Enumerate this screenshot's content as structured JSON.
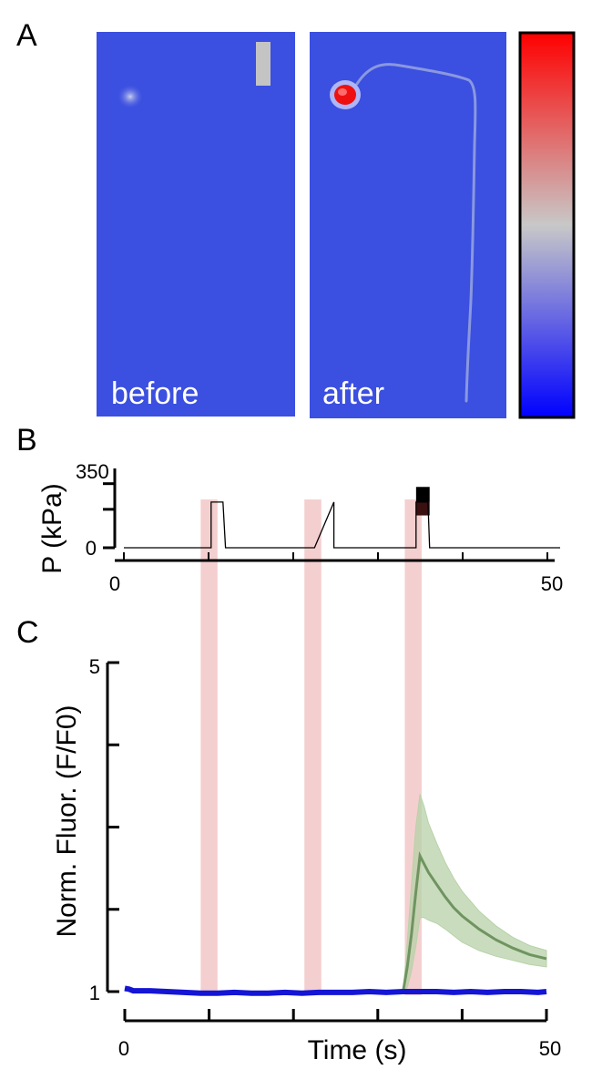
{
  "panels": [
    {
      "label": "A"
    },
    {
      "label": "B"
    },
    {
      "label": "C"
    }
  ],
  "panel_a": {
    "images": [
      {
        "caption": "before"
      },
      {
        "caption": "after"
      }
    ],
    "colorbar": {
      "colors": [
        "#0000ff",
        "#c8c8c8",
        "#ff0000"
      ]
    },
    "background_color": "#3b4fe0"
  },
  "chart_data": [
    {
      "type": "line",
      "panel": "B",
      "ylabel": "P (kPa)",
      "xlabel": "",
      "xlim": [
        0,
        50
      ],
      "ylim": [
        0,
        350
      ],
      "y_tick_labels": [
        "350",
        "0"
      ],
      "x_tick_labels": [
        "0",
        "50"
      ],
      "series": [
        {
          "values": [
            [
              0,
              0
            ],
            [
              10.3,
              0
            ],
            [
              10.3,
              240
            ],
            [
              11.7,
              240
            ],
            [
              12,
              0
            ],
            [
              22.5,
              0
            ],
            [
              24.8,
              240
            ],
            [
              24.8,
              0
            ],
            [
              34.5,
              0
            ],
            [
              34.5,
              240
            ],
            [
              35.9,
              240
            ],
            [
              36.1,
              0
            ],
            [
              51.5,
              0
            ]
          ]
        }
      ],
      "pressure_bands": [
        {
          "x": [
            34.5,
            36.1
          ],
          "y": [
            170,
            240
          ],
          "color": "#3a1010"
        },
        {
          "x": [
            34.5,
            36.1
          ],
          "y": [
            240,
            320
          ],
          "color": "#000000"
        }
      ]
    },
    {
      "type": "line",
      "panel": "C",
      "xlabel": "Time (s)",
      "ylabel": "Norm. Fluor. (F/F0)",
      "xlim": [
        0,
        50
      ],
      "ylim": [
        1,
        5
      ],
      "x_tick_labels": [
        "0",
        "50"
      ],
      "y_tick_labels": [
        "5",
        "1"
      ],
      "stimulus_intervals": [
        [
          9,
          11
        ],
        [
          21.3,
          23.3
        ],
        [
          33.2,
          35.2
        ]
      ],
      "stimulus_color": "#f2c7c7",
      "series": [
        {
          "color": "#6f9460",
          "band_color": "#b7d2a8",
          "values": [
            [
              0,
              1.02
            ],
            [
              10,
              0.99
            ],
            [
              20,
              0.99
            ],
            [
              30,
              1.0
            ],
            [
              33,
              1.0
            ],
            [
              33.5,
              1.3
            ],
            [
              34,
              1.7
            ],
            [
              34.5,
              2.2
            ],
            [
              35,
              2.65
            ],
            [
              35.5,
              2.55
            ],
            [
              36,
              2.45
            ],
            [
              37,
              2.3
            ],
            [
              38,
              2.15
            ],
            [
              39,
              2.02
            ],
            [
              40,
              1.92
            ],
            [
              42,
              1.76
            ],
            [
              44,
              1.63
            ],
            [
              46,
              1.53
            ],
            [
              48,
              1.45
            ],
            [
              50,
              1.4
            ]
          ],
          "upper": [
            [
              33,
              1.0
            ],
            [
              33.5,
              1.6
            ],
            [
              34,
              2.3
            ],
            [
              34.5,
              3.0
            ],
            [
              35,
              3.4
            ],
            [
              35.5,
              3.25
            ],
            [
              36,
              3.05
            ],
            [
              37,
              2.8
            ],
            [
              38,
              2.57
            ],
            [
              39,
              2.38
            ],
            [
              40,
              2.22
            ],
            [
              42,
              1.98
            ],
            [
              44,
              1.8
            ],
            [
              46,
              1.66
            ],
            [
              48,
              1.56
            ],
            [
              50,
              1.5
            ]
          ],
          "lower": [
            [
              33,
              1.0
            ],
            [
              33.5,
              1.05
            ],
            [
              34,
              1.25
            ],
            [
              34.5,
              1.55
            ],
            [
              35,
              1.9
            ],
            [
              35.5,
              1.9
            ],
            [
              36,
              1.87
            ],
            [
              37,
              1.83
            ],
            [
              38,
              1.76
            ],
            [
              39,
              1.68
            ],
            [
              40,
              1.6
            ],
            [
              42,
              1.5
            ],
            [
              44,
              1.43
            ],
            [
              46,
              1.38
            ],
            [
              48,
              1.33
            ],
            [
              50,
              1.3
            ]
          ]
        },
        {
          "color": "#1515d6",
          "values": [
            [
              0,
              1.04
            ],
            [
              0.5,
              1.03
            ],
            [
              1,
              1.01
            ],
            [
              3,
              1.01
            ],
            [
              5,
              1.0
            ],
            [
              7,
              0.99
            ],
            [
              9,
              0.98
            ],
            [
              11,
              0.98
            ],
            [
              13,
              0.99
            ],
            [
              15,
              0.98
            ],
            [
              17,
              0.98
            ],
            [
              19,
              0.99
            ],
            [
              21,
              0.98
            ],
            [
              23,
              0.99
            ],
            [
              25,
              0.99
            ],
            [
              27,
              0.99
            ],
            [
              29,
              1.0
            ],
            [
              31,
              0.99
            ],
            [
              33,
              1.0
            ],
            [
              35,
              1.0
            ],
            [
              37,
              1.0
            ],
            [
              39,
              0.99
            ],
            [
              41,
              1.0
            ],
            [
              43,
              0.99
            ],
            [
              45,
              1.0
            ],
            [
              47,
              1.0
            ],
            [
              49,
              0.99
            ],
            [
              50,
              1.0
            ]
          ]
        }
      ]
    }
  ]
}
